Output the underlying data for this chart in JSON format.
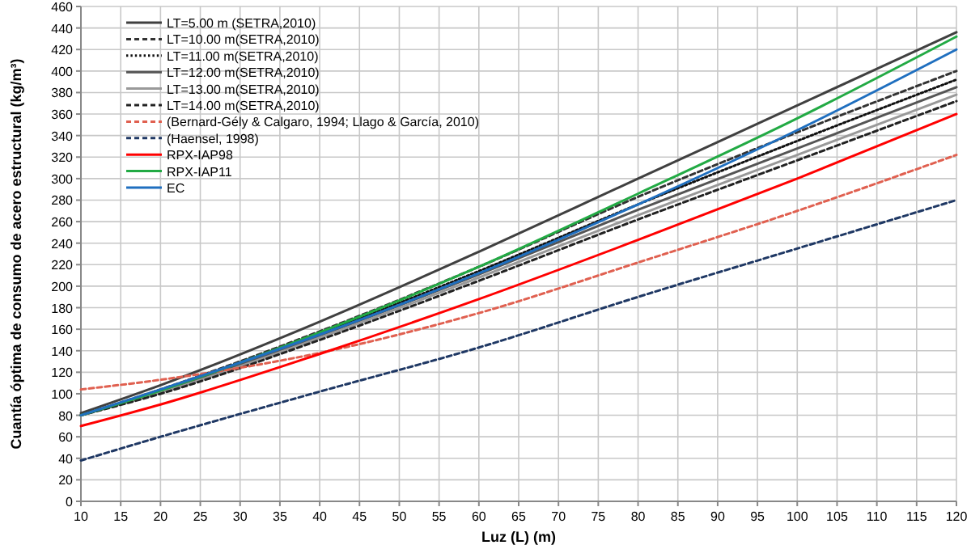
{
  "chart_data": {
    "type": "line",
    "xlabel": "Luz (L) (m)",
    "ylabel": "Cuantía óptima de consumo de acero estructural (kg/m³)",
    "x": [
      10,
      20,
      40,
      60,
      80,
      100,
      120
    ],
    "xlim": [
      10,
      120
    ],
    "xticks": [
      10,
      15,
      20,
      25,
      30,
      35,
      40,
      45,
      50,
      55,
      60,
      65,
      70,
      75,
      80,
      85,
      90,
      95,
      100,
      105,
      110,
      115,
      120
    ],
    "ylim": [
      0,
      460
    ],
    "yticks": [
      0,
      20,
      40,
      60,
      80,
      100,
      120,
      140,
      160,
      180,
      200,
      220,
      240,
      260,
      280,
      300,
      320,
      340,
      360,
      380,
      400,
      420,
      440,
      460
    ],
    "grid": true,
    "legend": "top left",
    "series": [
      {
        "name": "LT=5.00  m (SETRA,2010)",
        "color": "#404040",
        "line_style": "solid",
        "values": [
          82,
          108,
          167,
          232,
          300,
          368,
          436
        ]
      },
      {
        "name": "LT=10.00 m(SETRA,2010)",
        "color": "#333333",
        "line_style": "dashed",
        "values": [
          80,
          104,
          158,
          218,
          283,
          343,
          400
        ]
      },
      {
        "name": "LT=11.00 m(SETRA,2010)",
        "color": "#111111",
        "line_style": "dotted",
        "values": [
          80,
          103,
          156,
          214,
          276,
          335,
          392
        ]
      },
      {
        "name": "LT=12.00 m(SETRA,2010)",
        "color": "#555555",
        "line_style": "solid",
        "values": [
          80,
          102,
          154,
          211,
          271,
          328,
          385
        ]
      },
      {
        "name": "LT=13.00 m(SETRA,2010)",
        "color": "#999999",
        "line_style": "solid",
        "values": [
          80,
          101,
          152,
          208,
          266,
          322,
          378
        ]
      },
      {
        "name": "LT=14.00 m(SETRA,2010)",
        "color": "#222222",
        "line_style": "dashed",
        "values": [
          80,
          100,
          150,
          205,
          262,
          317,
          372
        ]
      },
      {
        "name": "(Bernard-Gély & Calgaro, 1994; Llago & García, 2010)",
        "color": "#e06050",
        "line_style": "dashed",
        "values": [
          104,
          113,
          138,
          175,
          222,
          270,
          322
        ]
      },
      {
        "name": "(Haensel, 1998)",
        "color": "#1f3864",
        "line_style": "dashed",
        "values": [
          38,
          60,
          102,
          143,
          190,
          235,
          280
        ]
      },
      {
        "name": "RPX-IAP98",
        "color": "#ff0000",
        "line_style": "solid",
        "values": [
          70,
          90,
          137,
          188,
          243,
          300,
          360
        ]
      },
      {
        "name": "RPX-IAP11",
        "color": "#22aa44",
        "line_style": "solid",
        "values": [
          80,
          103,
          157,
          218,
          286,
          356,
          432
        ]
      },
      {
        "name": "EC",
        "color": "#1f6fbf",
        "line_style": "solid",
        "values": [
          80,
          104,
          155,
          212,
          276,
          345,
          420
        ]
      }
    ]
  }
}
